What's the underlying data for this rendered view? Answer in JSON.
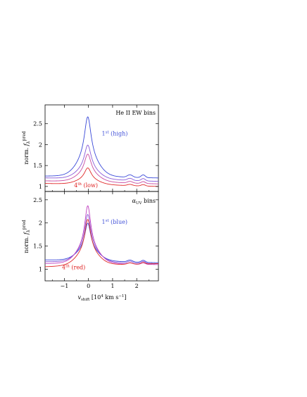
{
  "chart_data": [
    {
      "type": "line",
      "panel": "top",
      "title": "He II EW bins",
      "ylabel": "norm. f_λ^pred",
      "xlim": [
        -1.8,
        2.9
      ],
      "ylim": [
        0.88,
        2.95
      ],
      "yticks": [
        1,
        1.5,
        2,
        2.5
      ],
      "ytick_labels": [
        "1",
        "1.5",
        "2",
        "2.5"
      ],
      "xticks": [
        -1,
        0,
        1,
        2
      ],
      "grid": false,
      "annotations": [
        {
          "text_main": "1",
          "text_sup": "st",
          "text_tail": " (high)",
          "color": "#4050d8",
          "x": 0.55,
          "y": 2.22
        },
        {
          "text_main": "4",
          "text_sup": "th",
          "text_tail": " (low)",
          "color": "#e02020",
          "x": -0.6,
          "y": 0.98
        }
      ],
      "series": [
        {
          "color": "#3848d8",
          "peak": 2.68,
          "base": 1.24,
          "red_wing": 1.2,
          "bump": 0.06
        },
        {
          "color": "#8a5ad8",
          "peak": 2.02,
          "base": 1.2,
          "red_wing": 1.12,
          "bump": 0.05
        },
        {
          "color": "#c84aa0",
          "peak": 1.8,
          "base": 1.13,
          "red_wing": 1.06,
          "bump": 0.04
        },
        {
          "color": "#e02828",
          "peak": 1.47,
          "base": 1.07,
          "red_wing": 1.0,
          "bump": 0.03
        }
      ]
    },
    {
      "type": "line",
      "panel": "bottom",
      "title": "α_UV bins",
      "ylabel": "norm. f_λ^pred",
      "xlabel": "v_shift [10^4 km s^-1]",
      "xlim": [
        -1.8,
        2.9
      ],
      "ylim": [
        0.75,
        2.68
      ],
      "yticks": [
        1,
        1.5,
        2,
        2.5
      ],
      "ytick_labels": [
        "1",
        "1.5",
        "2",
        "2.5"
      ],
      "xticks": [
        -1,
        0,
        1,
        2
      ],
      "xtick_labels": [
        "−1",
        "0",
        "1",
        "2"
      ],
      "grid": false,
      "annotations": [
        {
          "text_main": "1",
          "text_sup": "st",
          "text_tail": " (blue)",
          "color": "#4050d8",
          "x": 0.55,
          "y": 1.98
        },
        {
          "text_main": "4",
          "text_sup": "th",
          "text_tail": " (red)",
          "color": "#e02020",
          "x": -1.1,
          "y": 1.0
        }
      ],
      "series": [
        {
          "color": "#3848d8",
          "peak": 2.02,
          "base": 1.2,
          "red_wing": 1.14,
          "bump": 0.04
        },
        {
          "color": "#8a5ad8",
          "peak": 2.2,
          "base": 1.16,
          "red_wing": 1.12,
          "bump": 0.04
        },
        {
          "color": "#c040c0",
          "peak": 2.38,
          "base": 1.12,
          "red_wing": 1.1,
          "bump": 0.03
        },
        {
          "color": "#e02828",
          "peak": 2.05,
          "base": 1.05,
          "red_wing": 1.12,
          "bump": 0.03
        }
      ]
    }
  ]
}
